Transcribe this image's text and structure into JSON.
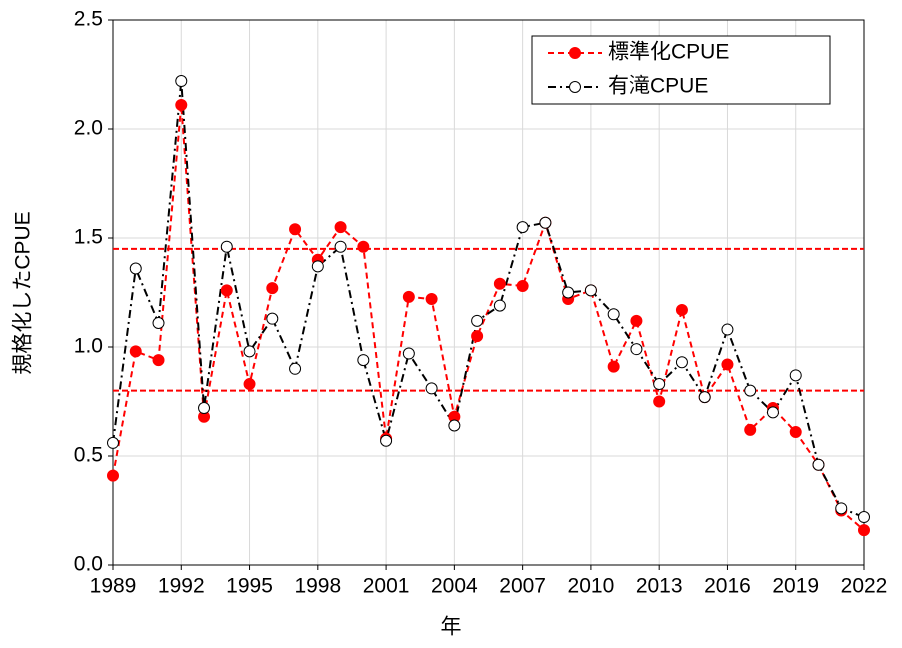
{
  "chart_data": {
    "type": "line",
    "x_label": "年",
    "y_label": "規格化したCPUE",
    "x": [
      1989,
      1990,
      1991,
      1992,
      1993,
      1994,
      1995,
      1996,
      1997,
      1998,
      1999,
      2000,
      2001,
      2002,
      2003,
      2004,
      2005,
      2006,
      2007,
      2008,
      2009,
      2010,
      2011,
      2012,
      2013,
      2014,
      2015,
      2016,
      2017,
      2018,
      2019,
      2020,
      2021,
      2022
    ],
    "series": [
      {
        "name": "標準化CPUE",
        "color": "#ff0000",
        "marker_fill": "#ff0000",
        "linestyle": "dashed",
        "values": [
          0.41,
          0.98,
          0.94,
          2.11,
          0.68,
          1.26,
          0.83,
          1.27,
          1.54,
          1.4,
          1.55,
          1.46,
          0.58,
          1.23,
          1.22,
          0.68,
          1.05,
          1.29,
          1.28,
          1.57,
          1.22,
          1.26,
          0.91,
          1.12,
          0.75,
          1.17,
          0.77,
          0.92,
          0.62,
          0.72,
          0.61,
          0.46,
          0.25,
          0.16
        ]
      },
      {
        "name": "有滝CPUE",
        "color": "#000000",
        "marker_fill": "#ffffff",
        "linestyle": "dashdot",
        "values": [
          0.56,
          1.36,
          1.11,
          2.22,
          0.72,
          1.46,
          0.98,
          1.13,
          0.9,
          1.37,
          1.46,
          0.94,
          0.57,
          0.97,
          0.81,
          0.64,
          1.12,
          1.19,
          1.55,
          1.57,
          1.25,
          1.26,
          1.15,
          0.99,
          0.83,
          0.93,
          0.77,
          1.08,
          0.8,
          0.7,
          0.87,
          0.46,
          0.26,
          0.22
        ]
      }
    ],
    "reference_lines": {
      "color": "#ff0000",
      "values": [
        1.45,
        0.8
      ]
    },
    "xlim": [
      1989,
      2022
    ],
    "xticks": [
      1989,
      1992,
      1995,
      1998,
      2001,
      2004,
      2007,
      2010,
      2013,
      2016,
      2019,
      2022
    ],
    "ylim": [
      0,
      2.5
    ],
    "yticks": [
      {
        "value": 0,
        "label": "0.0"
      },
      0.5,
      {
        "value": 1,
        "label": "1.0"
      },
      1.5,
      {
        "value": 2,
        "label": "2.0"
      },
      2.5
    ],
    "grid": true,
    "legend": "upper right"
  }
}
